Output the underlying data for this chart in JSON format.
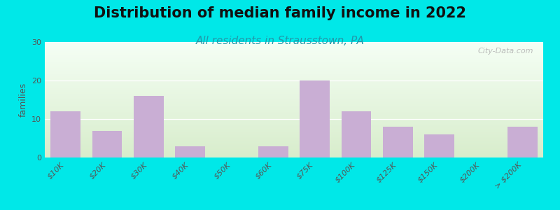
{
  "title": "Distribution of median family income in 2022",
  "subtitle": "All residents in Strausstown, PA",
  "ylabel": "families",
  "categories": [
    "$10K",
    "$20K",
    "$30K",
    "$40K",
    "$50K",
    "$60K",
    "$75K",
    "$100K",
    "$125K",
    "$150K",
    "$200K",
    "> $200K"
  ],
  "values": [
    12,
    7,
    16,
    3,
    0,
    3,
    20,
    12,
    8,
    6,
    0,
    8
  ],
  "bar_color": "#c9aed4",
  "background_outer": "#00e8e8",
  "background_inner_top": "#f5fff5",
  "background_inner_bottom": "#d8edcc",
  "ylim": [
    0,
    30
  ],
  "yticks": [
    0,
    10,
    20,
    30
  ],
  "watermark": "City-Data.com",
  "title_fontsize": 15,
  "subtitle_fontsize": 11,
  "ylabel_fontsize": 9,
  "tick_fontsize": 8
}
